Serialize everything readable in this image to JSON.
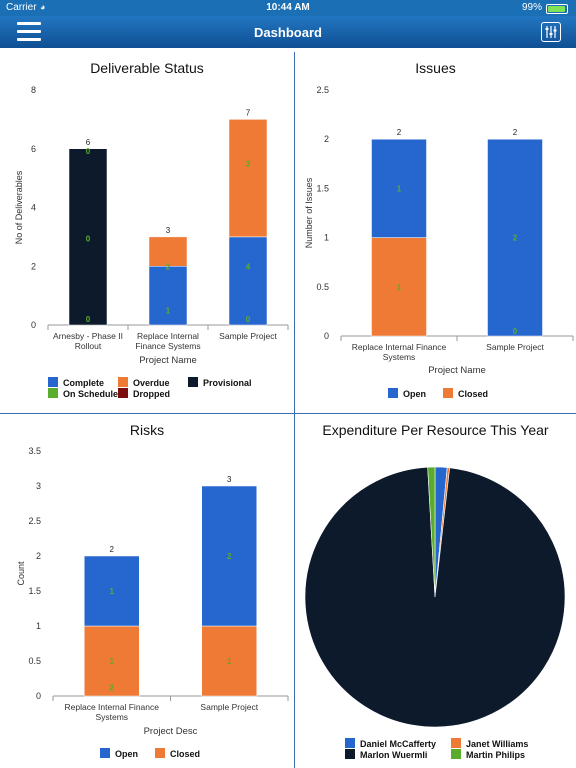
{
  "status": {
    "carrier": "Carrier",
    "time": "10:44 AM",
    "battery": "99%",
    "battery_level": 0.99
  },
  "header": {
    "title": "Dashboard",
    "menu_icon": "hamburger-menu-icon",
    "settings_icon": "sliders-icon"
  },
  "colors": {
    "blue": "#2667cf",
    "orange": "#ef7a35",
    "black": "#0c1a2b",
    "green": "#5aac2c",
    "maroon": "#7c0d0d",
    "navy": "#0f4f93"
  },
  "chart_data": [
    {
      "id": "deliverables",
      "type": "bar",
      "stacked": true,
      "title": "Deliverable Status",
      "xlabel": "Project Name",
      "ylabel": "No of Deliverables",
      "ylim": [
        0,
        8
      ],
      "yticks": [
        "0",
        "2",
        "4",
        "6",
        "8"
      ],
      "categories": [
        "Arnesby - Phase II Rollout",
        "Replace Internal Finance Systems",
        "Sample Project"
      ],
      "category_lines": [
        [
          "Arnesby - Phase II",
          "Rollout"
        ],
        [
          "Replace Internal",
          "Finance Systems"
        ],
        [
          "Sample Project"
        ]
      ],
      "totals": [
        "6",
        "3",
        "7"
      ],
      "series": [
        {
          "name": "Complete",
          "color": "#2667cf",
          "values": [
            0,
            2,
            3
          ]
        },
        {
          "name": "On Schedule",
          "color": "#5aac2c",
          "values": [
            0,
            0,
            0
          ]
        },
        {
          "name": "Overdue",
          "color": "#ef7a35",
          "values": [
            0,
            1,
            4
          ]
        },
        {
          "name": "Dropped",
          "color": "#7c0d0d",
          "values": [
            0,
            0,
            0
          ]
        },
        {
          "name": "Provisional",
          "color": "#0c1a2b",
          "values": [
            6,
            0,
            0
          ]
        }
      ],
      "segment_labels": [
        {
          "cat": 0,
          "at": 0.2,
          "text": "0"
        },
        {
          "cat": 0,
          "at": 2.95,
          "text": "0"
        },
        {
          "cat": 0,
          "at": 5.92,
          "text": "0"
        },
        {
          "cat": 1,
          "at": 0.5,
          "text": "1"
        },
        {
          "cat": 1,
          "at": 2.0,
          "text": "2"
        },
        {
          "cat": 2,
          "at": 0.2,
          "text": "0"
        },
        {
          "cat": 2,
          "at": 2.0,
          "text": "4"
        },
        {
          "cat": 2,
          "at": 5.5,
          "text": "3"
        }
      ],
      "legend": [
        {
          "name": "Complete",
          "color": "#2667cf"
        },
        {
          "name": "Overdue",
          "color": "#ef7a35"
        },
        {
          "name": "Provisional",
          "color": "#0c1a2b"
        },
        {
          "name": "On Schedule",
          "color": "#5aac2c"
        },
        {
          "name": "Dropped",
          "color": "#7c0d0d"
        }
      ],
      "legend_placement": "bottom"
    },
    {
      "id": "issues",
      "type": "bar",
      "stacked": true,
      "title": "Issues",
      "xlabel": "Project Name",
      "ylabel": "Number of Issues",
      "ylim": [
        0,
        2.5
      ],
      "yticks": [
        "0",
        "0.5",
        "1",
        "1.5",
        "2",
        "2.5"
      ],
      "categories": [
        "Replace Internal Finance Systems",
        "Sample Project"
      ],
      "category_lines": [
        [
          "Replace Internal Finance",
          "Systems"
        ],
        [
          "Sample Project"
        ]
      ],
      "totals": [
        "2",
        "2"
      ],
      "series": [
        {
          "name": "Closed",
          "color": "#ef7a35",
          "values": [
            1,
            0
          ]
        },
        {
          "name": "Open",
          "color": "#2667cf",
          "values": [
            1,
            2
          ]
        }
      ],
      "segment_labels": [
        {
          "cat": 0,
          "at": 0.5,
          "text": "1"
        },
        {
          "cat": 0,
          "at": 1.5,
          "text": "1"
        },
        {
          "cat": 1,
          "at": 0.05,
          "text": "0"
        },
        {
          "cat": 1,
          "at": 1.0,
          "text": "2"
        }
      ],
      "legend": [
        {
          "name": "Open",
          "color": "#2667cf"
        },
        {
          "name": "Closed",
          "color": "#ef7a35"
        }
      ],
      "legend_placement": "bottom"
    },
    {
      "id": "risks",
      "type": "bar",
      "stacked": true,
      "title": "Risks",
      "xlabel": "Project Desc",
      "ylabel": "Count",
      "ylim": [
        0,
        3.5
      ],
      "yticks": [
        "0",
        "0.5",
        "1",
        "1.5",
        "2",
        "2.5",
        "3",
        "3.5"
      ],
      "categories": [
        "Replace Internal Finance Systems",
        "Sample Project"
      ],
      "category_lines": [
        [
          "Replace Internal Finance",
          "Systems"
        ],
        [
          "Sample Project"
        ]
      ],
      "totals": [
        "2",
        "3"
      ],
      "series": [
        {
          "name": "Closed",
          "color": "#ef7a35",
          "values": [
            1,
            1
          ]
        },
        {
          "name": "Open",
          "color": "#2667cf",
          "values": [
            1,
            2
          ]
        }
      ],
      "segment_labels": [
        {
          "cat": 0,
          "at": 0.5,
          "text": "1"
        },
        {
          "cat": 0,
          "at": 0.12,
          "text": "2"
        },
        {
          "cat": 0,
          "at": 1.5,
          "text": "1"
        },
        {
          "cat": 1,
          "at": 0.5,
          "text": "1"
        },
        {
          "cat": 1,
          "at": 2.0,
          "text": "2"
        }
      ],
      "legend": [
        {
          "name": "Open",
          "color": "#2667cf"
        },
        {
          "name": "Closed",
          "color": "#ef7a35"
        }
      ],
      "legend_placement": "bottom"
    },
    {
      "id": "expenditure",
      "type": "pie",
      "title": "Expenditure Per Resource This Year",
      "slices": [
        {
          "name": "Daniel McCafferty",
          "color": "#2667cf",
          "value": 1.5
        },
        {
          "name": "Janet Williams",
          "color": "#ef7a35",
          "value": 0.3
        },
        {
          "name": "Marlon Wuermli",
          "color": "#0c1a2b",
          "value": 97.3
        },
        {
          "name": "Martin Philips",
          "color": "#5aac2c",
          "value": 0.9
        }
      ],
      "legend": [
        {
          "name": "Daniel McCafferty",
          "color": "#2667cf"
        },
        {
          "name": "Janet Williams",
          "color": "#ef7a35"
        },
        {
          "name": "Marlon Wuermli",
          "color": "#0c1a2b"
        },
        {
          "name": "Martin Philips",
          "color": "#5aac2c"
        }
      ],
      "legend_placement": "bottom"
    }
  ]
}
